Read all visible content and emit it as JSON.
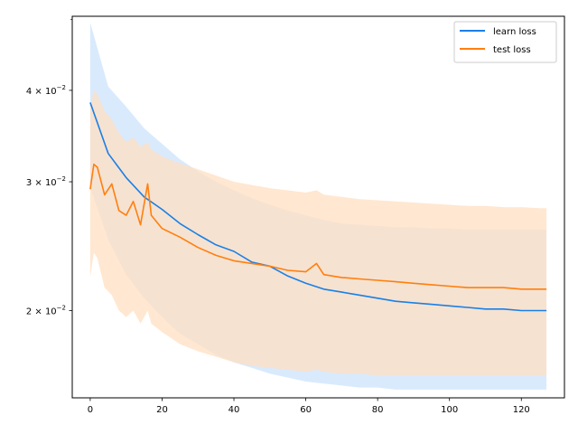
{
  "chart_data": {
    "type": "line",
    "title": "",
    "xlabel": "",
    "ylabel": "",
    "y_scale": "log",
    "xlim": [
      -5,
      132
    ],
    "ylim": [
      0.0152,
      0.0505
    ],
    "grid": false,
    "legend_position": "top-right",
    "x_ticks": [
      {
        "value": 0,
        "label": "0"
      },
      {
        "value": 20,
        "label": "20"
      },
      {
        "value": 40,
        "label": "40"
      },
      {
        "value": 60,
        "label": "60"
      },
      {
        "value": 80,
        "label": "80"
      },
      {
        "value": 100,
        "label": "100"
      },
      {
        "value": 120,
        "label": "120"
      }
    ],
    "y_ticks": [
      {
        "value": 0.02,
        "base": "2",
        "exp": "−2",
        "label": "2 × 10^-2"
      },
      {
        "value": 0.03,
        "base": "3",
        "exp": "−2",
        "label": "3 × 10^-2"
      },
      {
        "value": 0.04,
        "base": "4",
        "exp": "−2",
        "label": "4 × 10^-2"
      }
    ],
    "y_minor_ticks": [
      0.05
    ],
    "series": [
      {
        "name": "learn loss",
        "color": "#1a80e6",
        "band_color": "#cce3fc",
        "x": [
          0,
          5,
          10,
          15,
          20,
          25,
          30,
          35,
          40,
          45,
          50,
          55,
          60,
          65,
          70,
          75,
          80,
          85,
          90,
          95,
          100,
          105,
          110,
          115,
          120,
          125,
          127
        ],
        "y": [
          0.0385,
          0.0328,
          0.0304,
          0.0286,
          0.0275,
          0.0263,
          0.0254,
          0.0246,
          0.0241,
          0.0233,
          0.023,
          0.0223,
          0.0218,
          0.0214,
          0.0212,
          0.021,
          0.0208,
          0.0206,
          0.0205,
          0.0204,
          0.0203,
          0.0202,
          0.0201,
          0.0201,
          0.02,
          0.02,
          0.02
        ],
        "upper": [
          0.0495,
          0.0405,
          0.038,
          0.0355,
          0.0338,
          0.0322,
          0.031,
          0.03,
          0.0292,
          0.0285,
          0.0279,
          0.0274,
          0.027,
          0.0266,
          0.0263,
          0.0262,
          0.0261,
          0.026,
          0.026,
          0.0259,
          0.0259,
          0.0258,
          0.0258,
          0.0258,
          0.0258,
          0.0258,
          0.0258
        ],
        "lower": [
          0.0295,
          0.025,
          0.0224,
          0.0208,
          0.0196,
          0.0186,
          0.018,
          0.0174,
          0.017,
          0.0167,
          0.0164,
          0.0162,
          0.016,
          0.0159,
          0.0158,
          0.0157,
          0.0157,
          0.0156,
          0.0156,
          0.0156,
          0.0156,
          0.0156,
          0.0156,
          0.0156,
          0.0156,
          0.0156,
          0.0156
        ]
      },
      {
        "name": "test loss",
        "color": "#ff7f0e",
        "band_color": "#ffdfc2",
        "x": [
          0,
          1,
          2,
          4,
          6,
          8,
          10,
          12,
          14,
          16,
          17,
          20,
          25,
          30,
          35,
          40,
          45,
          50,
          55,
          60,
          63,
          65,
          70,
          75,
          80,
          85,
          90,
          95,
          100,
          105,
          110,
          115,
          120,
          125,
          127
        ],
        "y": [
          0.0293,
          0.0317,
          0.0314,
          0.0288,
          0.0298,
          0.0274,
          0.027,
          0.0282,
          0.0262,
          0.0298,
          0.027,
          0.0259,
          0.0252,
          0.0244,
          0.0238,
          0.0234,
          0.0232,
          0.023,
          0.0227,
          0.0226,
          0.0232,
          0.0224,
          0.0222,
          0.0221,
          0.022,
          0.0219,
          0.0218,
          0.0217,
          0.0216,
          0.0215,
          0.0215,
          0.0215,
          0.0214,
          0.0214,
          0.0214
        ],
        "upper": [
          0.038,
          0.04,
          0.0395,
          0.0375,
          0.0365,
          0.035,
          0.034,
          0.0345,
          0.0335,
          0.034,
          0.0332,
          0.0325,
          0.0318,
          0.0312,
          0.0306,
          0.03,
          0.0297,
          0.0294,
          0.0292,
          0.029,
          0.0292,
          0.0288,
          0.0286,
          0.0284,
          0.0283,
          0.0282,
          0.0281,
          0.028,
          0.0279,
          0.0278,
          0.0278,
          0.0277,
          0.0277,
          0.0276,
          0.0276
        ],
        "lower": [
          0.0222,
          0.024,
          0.0236,
          0.0215,
          0.021,
          0.02,
          0.0196,
          0.02,
          0.0192,
          0.02,
          0.0192,
          0.0187,
          0.018,
          0.0176,
          0.0173,
          0.017,
          0.0168,
          0.0167,
          0.0166,
          0.0165,
          0.0166,
          0.0165,
          0.0164,
          0.0164,
          0.0163,
          0.0163,
          0.0163,
          0.0163,
          0.0163,
          0.0163,
          0.0163,
          0.0163,
          0.0163,
          0.0163,
          0.0163
        ]
      }
    ]
  }
}
